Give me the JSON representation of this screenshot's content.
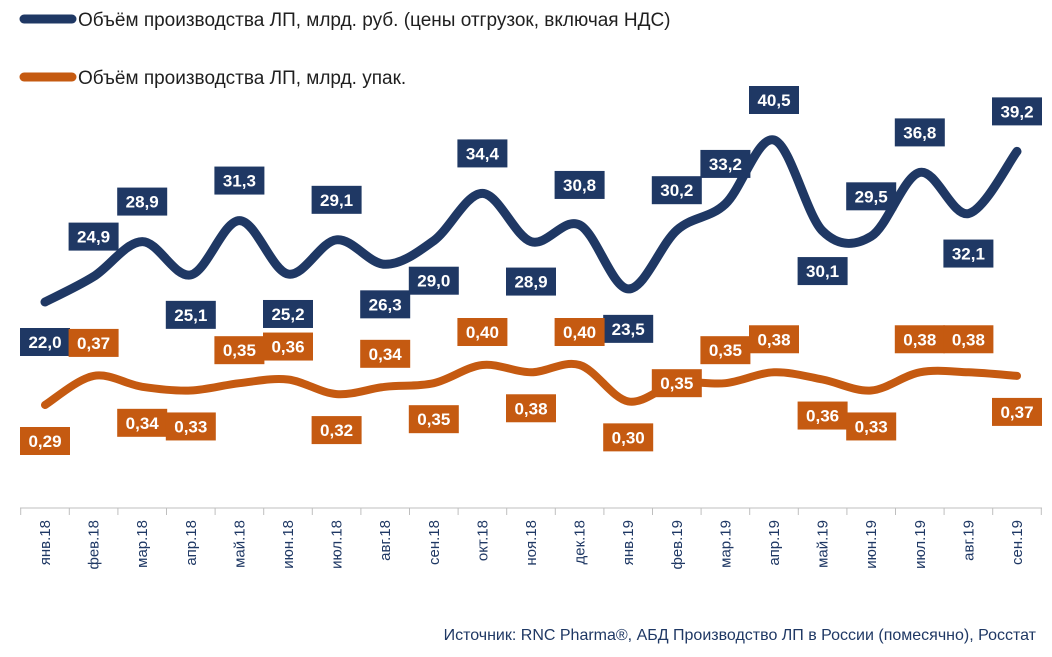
{
  "chart_data": {
    "type": "line",
    "categories": [
      "янв.18",
      "фев.18",
      "мар.18",
      "апр.18",
      "май.18",
      "июн.18",
      "июл.18",
      "авг.18",
      "сен.18",
      "окт.18",
      "ноя.18",
      "дек.18",
      "янв.19",
      "фев.19",
      "мар.19",
      "апр.19",
      "май.19",
      "июн.19",
      "июл.19",
      "авг.19",
      "сен.19"
    ],
    "series": [
      {
        "name": "Объём производства ЛП, млрд. руб. (цены отгрузок, включая НДС)",
        "color": "#1f3864",
        "values": [
          22.0,
          24.9,
          28.9,
          25.1,
          31.3,
          25.2,
          29.1,
          26.3,
          29.0,
          34.4,
          28.9,
          30.8,
          23.5,
          30.2,
          33.2,
          40.5,
          30.1,
          29.5,
          36.8,
          32.1,
          39.2
        ],
        "labels": [
          "22,0",
          "24,9",
          "28,9",
          "25,1",
          "31,3",
          "25,2",
          "29,1",
          "26,3",
          "29,0",
          "34,4",
          "28,9",
          "30,8",
          "23,5",
          "30,2",
          "33,2",
          "40,5",
          "30,1",
          "29,5",
          "36,8",
          "32,1",
          "39,2"
        ]
      },
      {
        "name": "Объём производства ЛП, млрд. упак.",
        "color": "#c55a11",
        "values": [
          0.29,
          0.37,
          0.34,
          0.33,
          0.35,
          0.36,
          0.32,
          0.34,
          0.35,
          0.4,
          0.38,
          0.4,
          0.3,
          0.35,
          0.35,
          0.38,
          0.36,
          0.33,
          0.38,
          0.38,
          0.37
        ],
        "labels": [
          "0,29",
          "0,37",
          "0,34",
          "0,33",
          "0,35",
          "0,36",
          "0,32",
          "0,34",
          "0,35",
          "0,40",
          "0,38",
          "0,40",
          "0,30",
          "0,35",
          "0,35",
          "0,38",
          "0,36",
          "0,33",
          "0,38",
          "0,38",
          "0,37"
        ]
      }
    ],
    "title": "",
    "xlabel": "",
    "ylabel": "",
    "grid": false,
    "legend": "top-left",
    "source": "Источник: RNC Pharma®, АБД Производство ЛП в России (помесячно), Росстат"
  }
}
